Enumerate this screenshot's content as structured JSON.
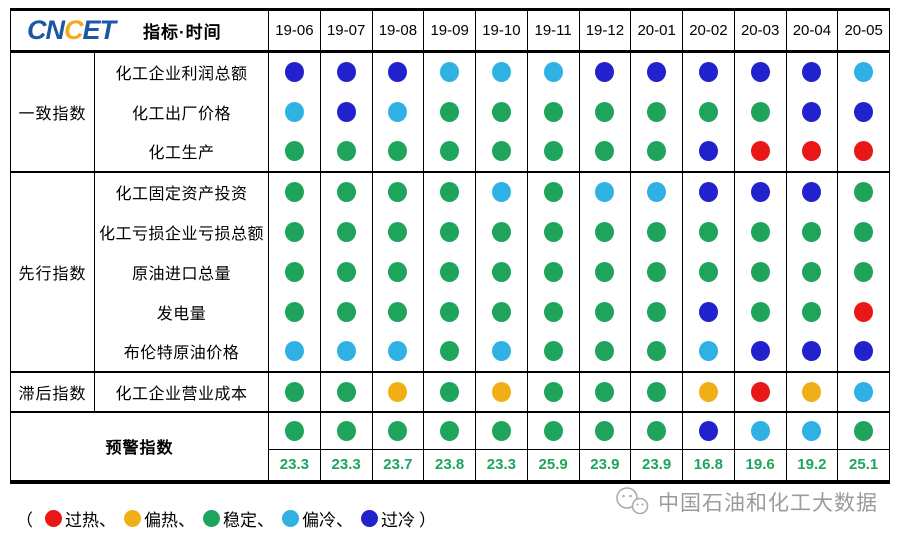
{
  "header": {
    "logo_letters": [
      {
        "ch": "C",
        "color": "#1C57A5"
      },
      {
        "ch": "N",
        "color": "#1C57A5"
      },
      {
        "ch": "C",
        "color": "#F7A81B"
      },
      {
        "ch": "E",
        "color": "#1C57A5"
      },
      {
        "ch": "T",
        "color": "#1C57A5"
      }
    ],
    "label": "指标·时间",
    "months": [
      "19-06",
      "19-07",
      "19-08",
      "19-09",
      "19-10",
      "19-11",
      "19-12",
      "20-01",
      "20-02",
      "20-03",
      "20-04",
      "20-05"
    ]
  },
  "status_colors": {
    "overheat": "#E91717",
    "warm": "#F2AF15",
    "stable": "#1EA55B",
    "cool": "#2FB1E4",
    "overcool": "#2121CE"
  },
  "value_color": "#1EA55B",
  "groups": [
    {
      "label": "一致指数",
      "rows": [
        {
          "label": "化工企业利润总额",
          "dots": [
            "overcool",
            "overcool",
            "overcool",
            "cool",
            "cool",
            "cool",
            "overcool",
            "overcool",
            "overcool",
            "overcool",
            "overcool",
            "cool"
          ]
        },
        {
          "label": "化工出厂价格",
          "dots": [
            "cool",
            "overcool",
            "cool",
            "stable",
            "stable",
            "stable",
            "stable",
            "stable",
            "stable",
            "stable",
            "overcool",
            "overcool"
          ]
        },
        {
          "label": "化工生产",
          "dots": [
            "stable",
            "stable",
            "stable",
            "stable",
            "stable",
            "stable",
            "stable",
            "stable",
            "overcool",
            "overheat",
            "overheat",
            "overheat"
          ]
        }
      ]
    },
    {
      "label": "先行指数",
      "rows": [
        {
          "label": "化工固定资产投资",
          "dots": [
            "stable",
            "stable",
            "stable",
            "stable",
            "cool",
            "stable",
            "cool",
            "cool",
            "overcool",
            "overcool",
            "overcool",
            "stable"
          ]
        },
        {
          "label": "化工亏损企业亏损总额",
          "dots": [
            "stable",
            "stable",
            "stable",
            "stable",
            "stable",
            "stable",
            "stable",
            "stable",
            "stable",
            "stable",
            "stable",
            "stable"
          ]
        },
        {
          "label": "原油进口总量",
          "dots": [
            "stable",
            "stable",
            "stable",
            "stable",
            "stable",
            "stable",
            "stable",
            "stable",
            "stable",
            "stable",
            "stable",
            "stable"
          ]
        },
        {
          "label": "发电量",
          "dots": [
            "stable",
            "stable",
            "stable",
            "stable",
            "stable",
            "stable",
            "stable",
            "stable",
            "overcool",
            "stable",
            "stable",
            "overheat"
          ]
        },
        {
          "label": "布伦特原油价格",
          "dots": [
            "cool",
            "cool",
            "cool",
            "stable",
            "cool",
            "stable",
            "stable",
            "stable",
            "cool",
            "overcool",
            "overcool",
            "overcool"
          ]
        }
      ]
    },
    {
      "label": "滞后指数",
      "rows": [
        {
          "label": "化工企业营业成本",
          "dots": [
            "stable",
            "stable",
            "warm",
            "stable",
            "warm",
            "stable",
            "stable",
            "stable",
            "warm",
            "overheat",
            "warm",
            "cool"
          ]
        }
      ]
    }
  ],
  "warning": {
    "label": "预警指数",
    "dots": [
      "stable",
      "stable",
      "stable",
      "stable",
      "stable",
      "stable",
      "stable",
      "stable",
      "overcool",
      "cool",
      "cool",
      "stable"
    ],
    "values": [
      "23.3",
      "23.3",
      "23.7",
      "23.8",
      "23.3",
      "25.9",
      "23.9",
      "23.9",
      "16.8",
      "19.6",
      "19.2",
      "25.1"
    ]
  },
  "legend": {
    "open": "（",
    "close": "）",
    "separator": "、",
    "items": [
      {
        "key": "overheat",
        "label": "过热"
      },
      {
        "key": "warm",
        "label": "偏热"
      },
      {
        "key": "stable",
        "label": "稳定"
      },
      {
        "key": "cool",
        "label": "偏冷"
      },
      {
        "key": "overcool",
        "label": "过冷"
      }
    ]
  },
  "watermark": {
    "text": "中国石油和化工大数据"
  }
}
